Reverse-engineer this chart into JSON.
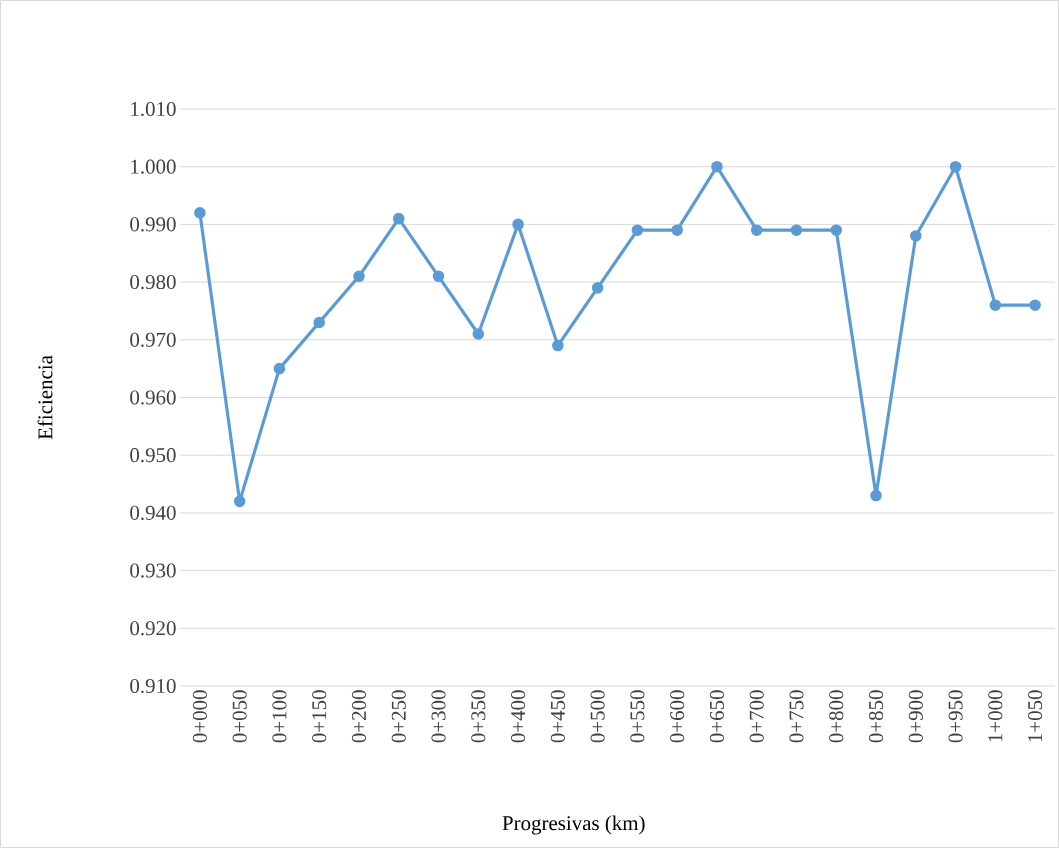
{
  "chart_data": {
    "type": "line",
    "xlabel": "Progresivas (km)",
    "ylabel": "Eficiencia",
    "categories": [
      "0+000",
      "0+050",
      "0+100",
      "0+150",
      "0+200",
      "0+250",
      "0+300",
      "0+350",
      "0+400",
      "0+450",
      "0+500",
      "0+550",
      "0+600",
      "0+650",
      "0+700",
      "0+750",
      "0+800",
      "0+850",
      "0+900",
      "0+950",
      "1+000",
      "1+050"
    ],
    "series": [
      {
        "color": "#5b9bd5",
        "values": [
          0.992,
          0.942,
          0.965,
          0.973,
          0.981,
          0.991,
          0.981,
          0.971,
          0.99,
          0.969,
          0.979,
          0.989,
          0.989,
          1.0,
          0.989,
          0.989,
          0.989,
          0.943,
          0.988,
          1.0,
          0.976,
          0.976
        ]
      }
    ],
    "ylim": [
      0.91,
      1.01
    ],
    "yticks": [
      {
        "value": 0.91,
        "label": "0.910"
      },
      {
        "value": 0.92,
        "label": "0.920"
      },
      {
        "value": 0.93,
        "label": "0.930"
      },
      {
        "value": 0.94,
        "label": "0.940"
      },
      {
        "value": 0.95,
        "label": "0.950"
      },
      {
        "value": 0.96,
        "label": "0.960"
      },
      {
        "value": 0.97,
        "label": "0.970"
      },
      {
        "value": 0.98,
        "label": "0.980"
      },
      {
        "value": 0.99,
        "label": "0.990"
      },
      {
        "value": 1.0,
        "label": "1.000"
      },
      {
        "value": 1.01,
        "label": "1.010"
      }
    ],
    "grid": "y",
    "marker": "circle",
    "line_style": "solid"
  }
}
